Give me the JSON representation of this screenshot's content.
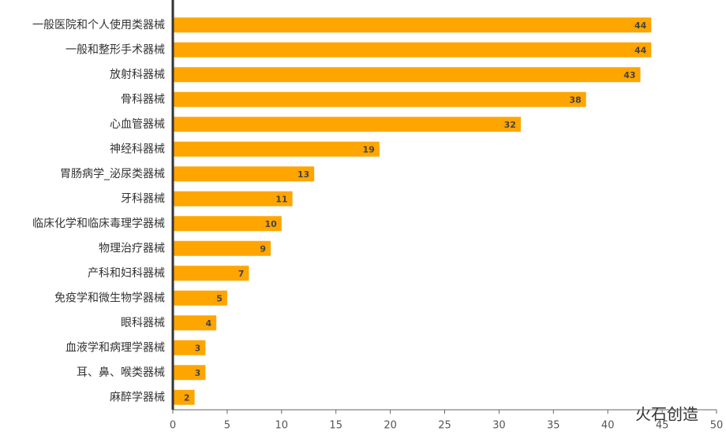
{
  "chart_data": {
    "type": "bar",
    "orientation": "horizontal",
    "categories": [
      "一般医院和个人使用类器械",
      "一般和整形手术器械",
      "放射科器械",
      "骨科器械",
      "心血管器械",
      "神经科器械",
      "胃肠病学_泌尿类器械",
      "牙科器械",
      "临床化学和临床毒理学器械",
      "物理治疗器械",
      "产科和妇科器械",
      "免疫学和微生物学器械",
      "眼科器械",
      "血液学和病理学器械",
      "耳、鼻、喉类器械",
      "麻醉学器械"
    ],
    "values": [
      44,
      44,
      43,
      38,
      32,
      19,
      13,
      11,
      10,
      9,
      7,
      5,
      4,
      3,
      3,
      2
    ],
    "color": "#FFA500",
    "xlim": [
      0,
      50
    ],
    "xticks": [
      0,
      5,
      10,
      15,
      20,
      25,
      30,
      35,
      40,
      45,
      50
    ],
    "watermark": "火石创造"
  }
}
